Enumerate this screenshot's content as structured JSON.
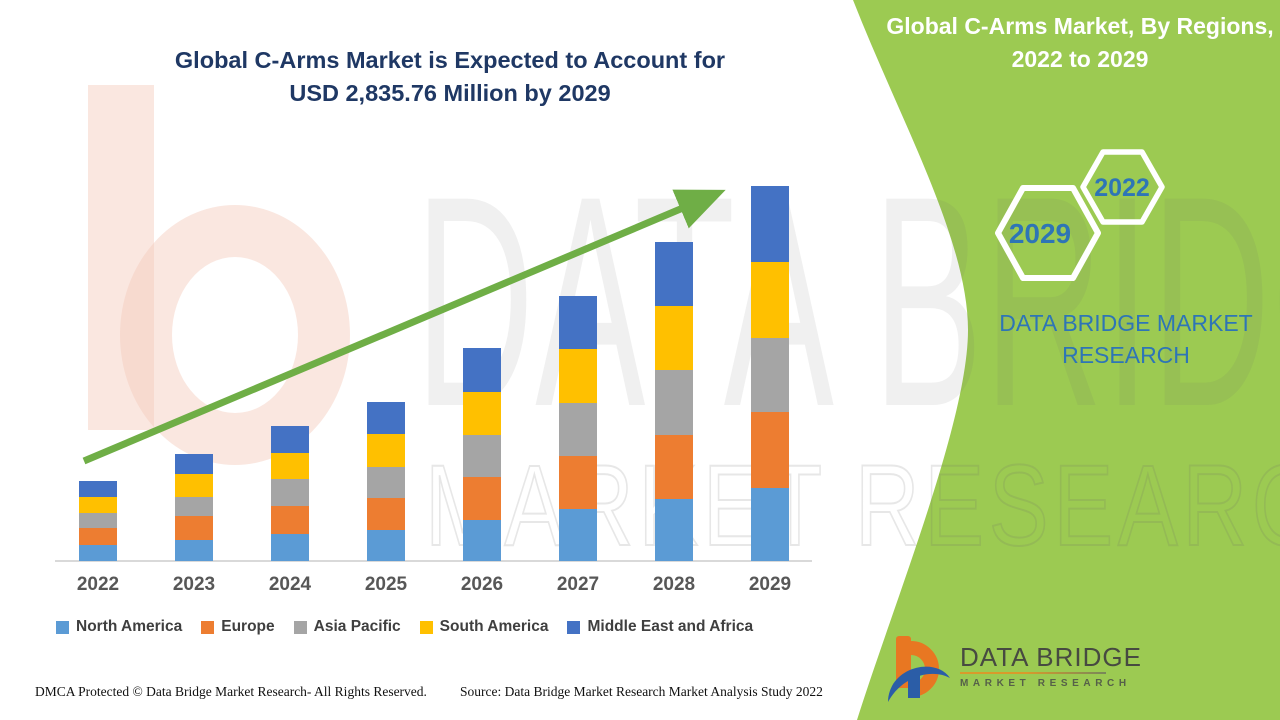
{
  "main_title": {
    "line1": "Global C-Arms Market is Expected to Account for",
    "line2": "USD 2,835.76 Million by 2029"
  },
  "side_panel": {
    "title_line1": "Global C-Arms Market, By Regions,",
    "title_line2": "2022 to 2029",
    "hexagon_large_year": "2029",
    "hexagon_small_year": "2022",
    "brand_text": "DATA BRIDGE MARKET RESEARCH",
    "background_color": "#9CCA52",
    "accent_text_color": "#2E75B6"
  },
  "logo": {
    "name_line": "DATA BRIDGE",
    "sub_line": "MARKET RESEARCH"
  },
  "watermark": {
    "line1": "DATA BRIDGE",
    "line2": "MARKET RESEARCH"
  },
  "footer": {
    "dmca": "DMCA Protected © Data Bridge Market Research- All Rights Reserved.",
    "source": "Source: Data Bridge Market Research Market Analysis Study 2022"
  },
  "chart_data": {
    "type": "bar",
    "stacked": true,
    "unit": "USD Million",
    "title": "Global C-Arms Market is Expected to Account for USD 2,835.76 Million by 2029",
    "xlabel": "",
    "ylabel": "",
    "ylim": [
      0,
      2900
    ],
    "grid": false,
    "legend_position": "bottom",
    "trend_arrow": true,
    "categories": [
      "2022",
      "2023",
      "2024",
      "2025",
      "2026",
      "2027",
      "2028",
      "2029"
    ],
    "series": [
      {
        "name": "North America",
        "color": "#5B9BD5",
        "values": [
          121,
          159,
          204,
          235,
          310,
          393,
          469,
          552
        ]
      },
      {
        "name": "Europe",
        "color": "#ED7D31",
        "values": [
          129,
          181,
          212,
          242,
          325,
          401,
          484,
          575
        ]
      },
      {
        "name": "Asia Pacific",
        "color": "#A5A5A5",
        "values": [
          114,
          144,
          204,
          235,
          318,
          401,
          491,
          560
        ]
      },
      {
        "name": "South America",
        "color": "#FFC000",
        "values": [
          121,
          174,
          197,
          249,
          325,
          408,
          484,
          575
        ]
      },
      {
        "name": "Middle East and Africa",
        "color": "#4472C4",
        "values": [
          121,
          151,
          204,
          242,
          333,
          401,
          484,
          573.76
        ]
      }
    ],
    "totals": [
      606,
      809,
      1021,
      1203,
      1611,
      2004,
      2412,
      2835.76
    ],
    "note": "Regional values estimated from bar segment heights; 2029 total stated as USD 2,835.76 Million"
  }
}
